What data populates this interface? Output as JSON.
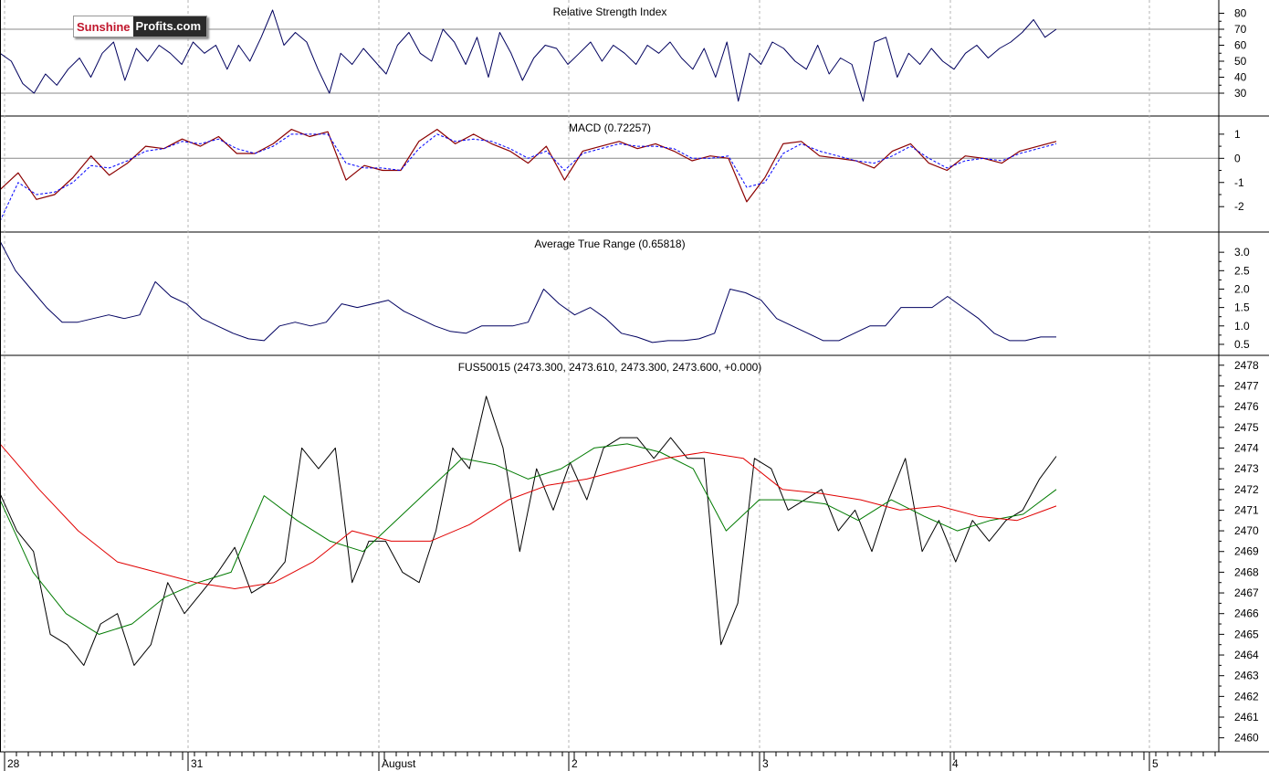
{
  "logo": {
    "part1": "Sunshine",
    "part2": "Profits.com"
  },
  "colors": {
    "background": "#ffffff",
    "grid": "#b4b4b4",
    "price": "#000000",
    "sma_short": "#007a00",
    "sma_long": "#e00000",
    "rsi": "#00005e",
    "macd": "#8b0000",
    "signal": "#0000ff",
    "atr": "#000060"
  },
  "x_axis": {
    "labels": [
      "28",
      "31",
      "August",
      "2",
      "3",
      "4",
      "5"
    ]
  },
  "chart_data": [
    {
      "type": "line",
      "title": "Relative Strength Index",
      "ylim": [
        18,
        86
      ],
      "yticks": [
        30,
        40,
        50,
        60,
        70,
        80
      ],
      "reference_lines": [
        30,
        70
      ],
      "series": [
        {
          "values": [
            55,
            50,
            36,
            30,
            42,
            35,
            45,
            52,
            40,
            55,
            62,
            38,
            58,
            50,
            60,
            55,
            48,
            62,
            55,
            60,
            45,
            60,
            50,
            65,
            82,
            60,
            68,
            62,
            45,
            30,
            55,
            48,
            58,
            50,
            42,
            60,
            68,
            55,
            50,
            70,
            62,
            48,
            65,
            40,
            68,
            55,
            38,
            52,
            60,
            58,
            48,
            55,
            62,
            50,
            60,
            55,
            48,
            60,
            55,
            62,
            52,
            45,
            58,
            40,
            62,
            25,
            55,
            48,
            62,
            58,
            50,
            45,
            60,
            42,
            52,
            48,
            25,
            62,
            65,
            40,
            55,
            48,
            58,
            50,
            45,
            55,
            60,
            52,
            58,
            62,
            68,
            76,
            65,
            70
          ]
        }
      ]
    },
    {
      "type": "line",
      "title": "MACD (0.72257)",
      "ylim": [
        -2.9,
        1.6
      ],
      "yticks": [
        1,
        0,
        -1,
        -2
      ],
      "reference_lines": [
        0
      ],
      "series": [
        {
          "values": [
            -1.3,
            -0.6,
            -1.7,
            -1.5,
            -0.8,
            0.1,
            -0.7,
            -0.2,
            0.5,
            0.4,
            0.8,
            0.5,
            0.9,
            0.2,
            0.2,
            0.6,
            1.2,
            0.9,
            1.1,
            -0.9,
            -0.3,
            -0.5,
            -0.5,
            0.7,
            1.2,
            0.6,
            1.0,
            0.6,
            0.3,
            -0.2,
            0.5,
            -0.9,
            0.3,
            0.5,
            0.7,
            0.4,
            0.6,
            0.3,
            -0.1,
            0.1,
            0.0,
            -1.8,
            -0.8,
            0.6,
            0.7,
            0.1,
            0.0,
            -0.1,
            -0.4,
            0.3,
            0.6,
            -0.2,
            -0.5,
            0.1,
            0.0,
            -0.2,
            0.3,
            0.5,
            0.7
          ]
        },
        {
          "values": [
            -2.6,
            -1.0,
            -1.5,
            -1.4,
            -1.0,
            -0.3,
            -0.4,
            -0.1,
            0.3,
            0.4,
            0.7,
            0.6,
            0.8,
            0.4,
            0.2,
            0.5,
            1.0,
            1.0,
            1.0,
            -0.2,
            -0.4,
            -0.4,
            -0.5,
            0.4,
            1.0,
            0.7,
            0.8,
            0.7,
            0.4,
            0.0,
            0.3,
            -0.5,
            0.2,
            0.4,
            0.6,
            0.5,
            0.5,
            0.4,
            0.0,
            0.0,
            0.1,
            -1.2,
            -1.0,
            0.2,
            0.6,
            0.3,
            0.1,
            -0.1,
            -0.2,
            0.1,
            0.5,
            0.0,
            -0.4,
            -0.1,
            0.0,
            -0.1,
            0.2,
            0.4,
            0.6
          ]
        }
      ]
    },
    {
      "type": "line",
      "title": "Average True Range (0.65818)",
      "ylim": [
        0.3,
        3.45
      ],
      "yticks": [
        3.0,
        2.5,
        2.0,
        1.5,
        1.0,
        0.5
      ],
      "series": [
        {
          "values": [
            3.3,
            2.5,
            2.0,
            1.5,
            1.1,
            1.1,
            1.2,
            1.3,
            1.2,
            1.3,
            2.2,
            1.8,
            1.6,
            1.2,
            1.0,
            0.8,
            0.65,
            0.6,
            1.0,
            1.1,
            1.0,
            1.1,
            1.6,
            1.5,
            1.6,
            1.7,
            1.4,
            1.2,
            1.0,
            0.85,
            0.8,
            1.0,
            1.0,
            1.0,
            1.1,
            2.0,
            1.6,
            1.3,
            1.5,
            1.2,
            0.8,
            0.7,
            0.55,
            0.6,
            0.6,
            0.65,
            0.8,
            2.0,
            1.9,
            1.7,
            1.2,
            1.0,
            0.8,
            0.6,
            0.6,
            0.8,
            1.0,
            1.0,
            1.5,
            1.5,
            1.5,
            1.8,
            1.5,
            1.2,
            0.8,
            0.6,
            0.6,
            0.7,
            0.7
          ]
        }
      ]
    },
    {
      "type": "line",
      "title": "FUS50015 (2473.300, 2473.610, 2473.300, 2473.600, +0.000)",
      "ylim": [
        2459.5,
        2478.3
      ],
      "yticks": [
        2478,
        2477,
        2476,
        2475,
        2474,
        2473,
        2472,
        2471,
        2470,
        2469,
        2468,
        2467,
        2466,
        2465,
        2464,
        2463,
        2462,
        2461,
        2460
      ],
      "series": [
        {
          "values": [
            2471.8,
            2470,
            2469,
            2465,
            2464.5,
            2463.5,
            2465.5,
            2466,
            2463.5,
            2464.5,
            2467.5,
            2466,
            2467,
            2468,
            2469.2,
            2467,
            2467.5,
            2468.5,
            2474,
            2473,
            2474,
            2467.5,
            2469.5,
            2469.5,
            2468,
            2467.5,
            2470,
            2474,
            2473,
            2476.5,
            2474,
            2469,
            2473,
            2471,
            2473.3,
            2471.5,
            2474,
            2474.5,
            2474.5,
            2473.5,
            2474.5,
            2473.5,
            2473.5,
            2464.5,
            2466.5,
            2473.5,
            2473,
            2471,
            2471.5,
            2472,
            2470,
            2471,
            2469,
            2471.5,
            2473.5,
            2469,
            2470.5,
            2468.5,
            2470.5,
            2469.5,
            2470.5,
            2471,
            2472.5,
            2473.6
          ]
        },
        {
          "values": [
            2471.5,
            2468,
            2466,
            2465,
            2465.5,
            2466.8,
            2467.5,
            2468,
            2471.7,
            2470.5,
            2469.5,
            2469,
            2470.5,
            2472,
            2473.5,
            2473.2,
            2472.5,
            2473,
            2474,
            2474.2,
            2473.8,
            2473,
            2470,
            2471.5,
            2471.5,
            2471.3,
            2470.5,
            2471.5,
            2470.7,
            2470,
            2470.5,
            2470.8,
            2472
          ]
        },
        {
          "values": [
            2474.2,
            2472,
            2470,
            2468.5,
            2468,
            2467.5,
            2467.2,
            2467.5,
            2468.5,
            2470,
            2469.5,
            2469.5,
            2470.3,
            2471.5,
            2472.2,
            2472.5,
            2473,
            2473.5,
            2473.8,
            2473.5,
            2472,
            2471.8,
            2471.5,
            2471,
            2471.2,
            2470.7,
            2470.5,
            2471.2
          ]
        }
      ]
    }
  ]
}
